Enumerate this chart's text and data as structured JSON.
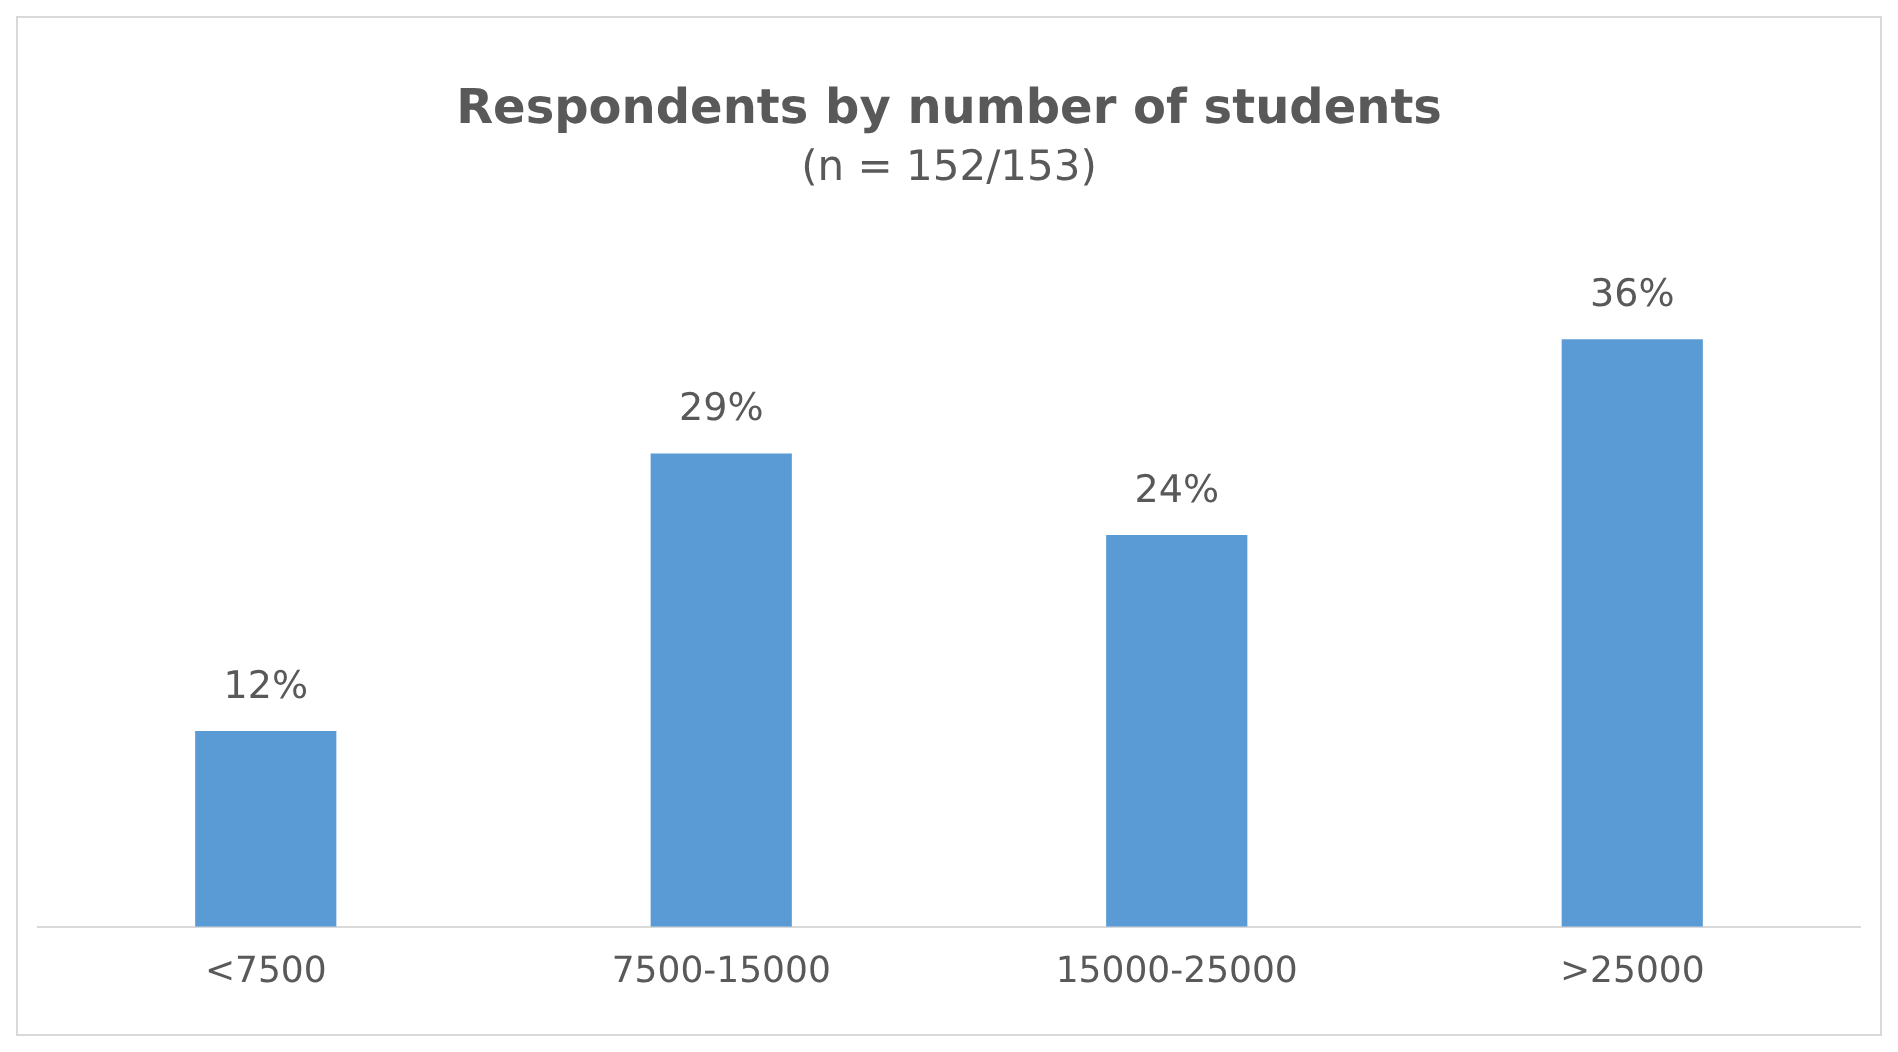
{
  "chart_data": {
    "type": "bar",
    "title": "Respondents by number of students",
    "subtitle": "(n = 152/153)",
    "categories": [
      "<7500",
      "7500-15000",
      "15000-25000",
      ">25000"
    ],
    "values": [
      12,
      29,
      24,
      36
    ],
    "color": "#5b9bd5",
    "value_labels": [
      "12%",
      "29%",
      "24%",
      "36%"
    ],
    "grid": false,
    "legend": false
  }
}
